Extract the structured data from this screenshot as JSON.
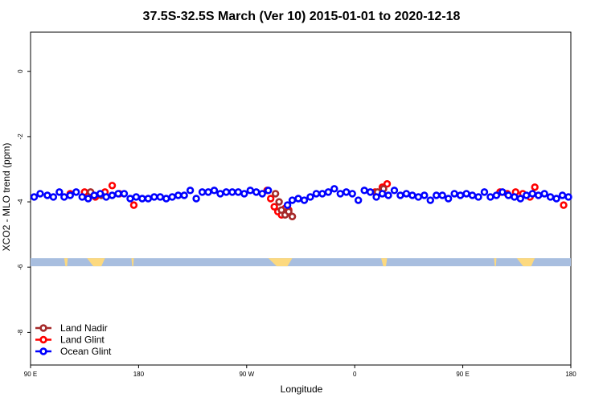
{
  "chart_data": {
    "type": "scatter",
    "title": "37.5S-32.5S March (Ver 10)   2015-01-01 to 2020-12-18",
    "xlabel": "Longitude",
    "ylabel": "XCO2 - MLO trend (ppm)",
    "xlim": [
      0,
      450
    ],
    "ylim": [
      -9,
      1.2
    ],
    "xticks": [
      {
        "value": 0,
        "label": "90 E"
      },
      {
        "value": 90,
        "label": "180"
      },
      {
        "value": 180,
        "label": "90 W"
      },
      {
        "value": 270,
        "label": "0"
      },
      {
        "value": 360,
        "label": "90 E"
      },
      {
        "value": 450,
        "label": "180"
      }
    ],
    "yticks": [
      {
        "value": 0,
        "label": "0"
      },
      {
        "value": -2,
        "label": "-2"
      },
      {
        "value": -4,
        "label": "-4"
      },
      {
        "value": -6,
        "label": "-6"
      },
      {
        "value": -8,
        "label": "-8"
      }
    ],
    "legend_position": "bottom-left",
    "series": [
      {
        "name": "Land Nadir",
        "color": "#a52a2a",
        "x": [
          50,
          59,
          204,
          207,
          209,
          212,
          215,
          218,
          289,
          294
        ],
        "y": [
          -3.7,
          -3.8,
          -3.75,
          -4.0,
          -4.25,
          -4.4,
          -4.3,
          -4.45,
          -3.7,
          -3.6
        ]
      },
      {
        "name": "Land Glint",
        "color": "#ff0000",
        "x": [
          33,
          45,
          54,
          62,
          68,
          74,
          86,
          197,
          200,
          203,
          206,
          209,
          212,
          215,
          218,
          287,
          293,
          297,
          391,
          397,
          404,
          410,
          416,
          420,
          444
        ],
        "y": [
          -3.75,
          -3.7,
          -3.85,
          -3.7,
          -3.5,
          -3.75,
          -4.1,
          -3.65,
          -3.9,
          -4.15,
          -4.3,
          -4.4,
          -4.2,
          -4.25,
          -4.45,
          -3.7,
          -3.55,
          -3.45,
          -3.7,
          -3.75,
          -3.7,
          -3.75,
          -3.85,
          -3.55,
          -4.1
        ]
      },
      {
        "name": "Ocean Glint",
        "color": "#0000ff",
        "x": [
          3,
          8,
          14,
          19,
          24,
          28,
          33,
          38,
          43,
          48,
          53,
          58,
          63,
          68,
          73,
          78,
          83,
          88,
          93,
          98,
          103,
          108,
          113,
          118,
          123,
          128,
          133,
          138,
          143,
          148,
          153,
          158,
          163,
          168,
          173,
          178,
          183,
          188,
          193,
          198,
          214,
          218,
          223,
          228,
          233,
          238,
          243,
          248,
          253,
          258,
          263,
          268,
          273,
          278,
          283,
          288,
          293,
          298,
          303,
          308,
          313,
          318,
          323,
          328,
          333,
          338,
          343,
          348,
          353,
          358,
          363,
          368,
          373,
          378,
          383,
          388,
          393,
          398,
          403,
          408,
          413,
          418,
          423,
          428,
          433,
          438,
          443,
          448
        ],
        "y": [
          -3.85,
          -3.75,
          -3.8,
          -3.85,
          -3.7,
          -3.85,
          -3.8,
          -3.7,
          -3.85,
          -3.9,
          -3.8,
          -3.75,
          -3.85,
          -3.8,
          -3.75,
          -3.75,
          -3.9,
          -3.85,
          -3.9,
          -3.9,
          -3.85,
          -3.85,
          -3.9,
          -3.85,
          -3.8,
          -3.8,
          -3.65,
          -3.9,
          -3.7,
          -3.7,
          -3.65,
          -3.75,
          -3.7,
          -3.7,
          -3.7,
          -3.75,
          -3.65,
          -3.7,
          -3.75,
          -3.65,
          -4.1,
          -3.95,
          -3.9,
          -3.95,
          -3.85,
          -3.75,
          -3.75,
          -3.7,
          -3.6,
          -3.75,
          -3.7,
          -3.75,
          -3.95,
          -3.65,
          -3.7,
          -3.85,
          -3.75,
          -3.8,
          -3.65,
          -3.8,
          -3.75,
          -3.8,
          -3.85,
          -3.8,
          -3.95,
          -3.8,
          -3.8,
          -3.9,
          -3.75,
          -3.8,
          -3.75,
          -3.8,
          -3.85,
          -3.7,
          -3.85,
          -3.8,
          -3.7,
          -3.8,
          -3.85,
          -3.9,
          -3.8,
          -3.75,
          -3.8,
          -3.75,
          -3.85,
          -3.9,
          -3.8,
          -3.85
        ]
      }
    ],
    "land_strip": {
      "y": -5.85,
      "ocean_color": "#a8bedf",
      "land_color": "#fcd97f",
      "land_segments": [
        [
          28,
          31
        ],
        [
          47,
          62
        ],
        [
          84,
          86
        ],
        [
          198,
          218
        ],
        [
          292,
          297
        ],
        [
          386,
          388
        ],
        [
          405,
          420
        ]
      ]
    }
  }
}
